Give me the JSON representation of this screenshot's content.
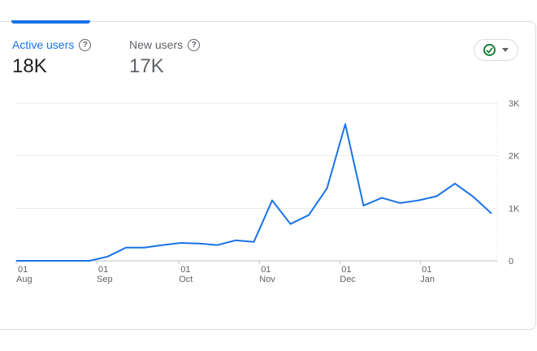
{
  "metrics": [
    {
      "label": "Active users",
      "value": "18K"
    },
    {
      "label": "New users",
      "value": "17K"
    }
  ],
  "help_glyph": "?",
  "status": {
    "icon": "check-circle-icon",
    "dropdown_icon": "caret-down-icon"
  },
  "colors": {
    "accent": "#1a73e8",
    "line": "#1a73e8",
    "grid": "#e8eaed",
    "check": "#188038",
    "axis_text": "#5f6368"
  },
  "chart_data": {
    "type": "line",
    "series": [
      {
        "name": "Active users",
        "values": [
          0,
          0,
          0,
          0,
          0,
          80,
          250,
          250,
          300,
          340,
          330,
          300,
          390,
          360,
          1150,
          700,
          870,
          1380,
          2600,
          1050,
          1200,
          1100,
          1150,
          1230,
          1470,
          1220,
          900
        ]
      }
    ],
    "y_ticks": [
      "3K",
      "2K",
      "1K",
      "0"
    ],
    "y_tick_values": [
      3000,
      2000,
      1000,
      0
    ],
    "ylim": [
      0,
      3000
    ],
    "x_ticks": [
      {
        "day": "01",
        "month": "Aug",
        "index": 0
      },
      {
        "day": "01",
        "month": "Sep",
        "index": 4.4
      },
      {
        "day": "01",
        "month": "Oct",
        "index": 8.9
      },
      {
        "day": "01",
        "month": "Nov",
        "index": 13.3
      },
      {
        "day": "01",
        "month": "Dec",
        "index": 17.7
      },
      {
        "day": "01",
        "month": "Jan",
        "index": 22.1
      }
    ],
    "grid": true
  }
}
